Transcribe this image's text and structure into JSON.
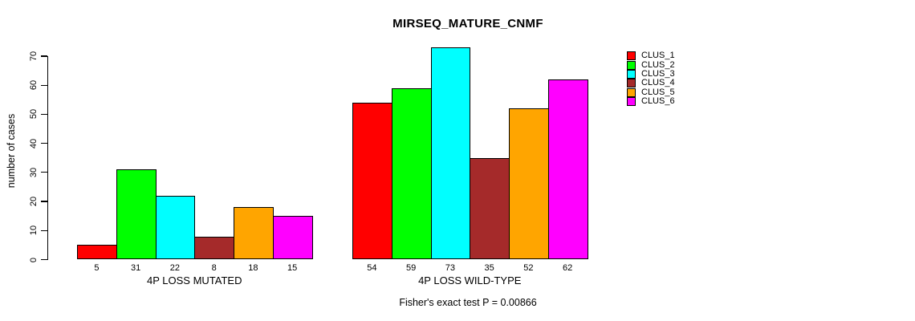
{
  "chart_data": {
    "type": "bar",
    "title": "MIRSEQ_MATURE_CNMF",
    "ylabel": "number of cases",
    "xlabel": "",
    "ylim": [
      0,
      70
    ],
    "yticks": [
      0,
      10,
      20,
      30,
      40,
      50,
      60,
      70
    ],
    "grid": false,
    "legend_position": "top-right",
    "categories": [
      "4P LOSS MUTATED",
      "4P LOSS WILD-TYPE"
    ],
    "series": [
      {
        "name": "CLUS_1",
        "color": "#ff0000",
        "values": [
          5,
          54
        ]
      },
      {
        "name": "CLUS_2",
        "color": "#00ff00",
        "values": [
          31,
          59
        ]
      },
      {
        "name": "CLUS_3",
        "color": "#00ffff",
        "values": [
          22,
          73
        ]
      },
      {
        "name": "CLUS_4",
        "color": "#a52a2a",
        "values": [
          8,
          35
        ]
      },
      {
        "name": "CLUS_5",
        "color": "#ffa500",
        "values": [
          18,
          52
        ]
      },
      {
        "name": "CLUS_6",
        "color": "#ff00ff",
        "values": [
          15,
          62
        ]
      }
    ],
    "bar_value_labels_shown": true,
    "annotation": "Fisher's exact test P = 0.00866"
  }
}
